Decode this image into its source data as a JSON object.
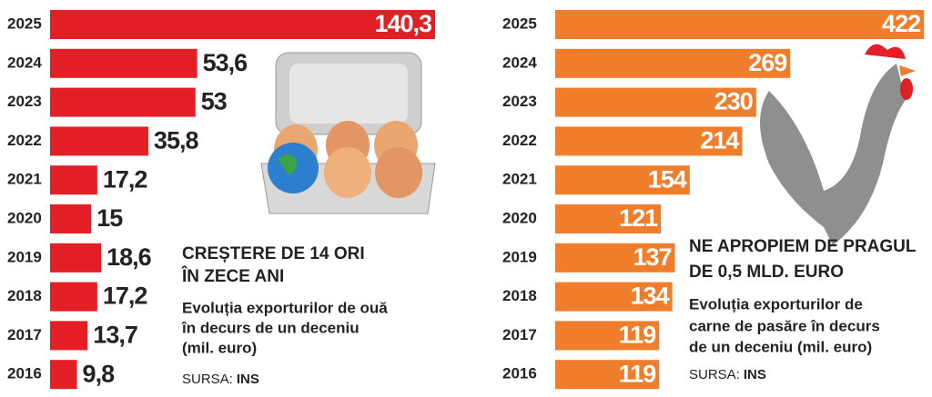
{
  "chart_data": [
    {
      "type": "bar",
      "orientation": "horizontal",
      "categories": [
        "2025",
        "2024",
        "2023",
        "2022",
        "2021",
        "2020",
        "2019",
        "2018",
        "2017",
        "2016"
      ],
      "values": [
        140.3,
        53.6,
        53,
        35.8,
        17.2,
        15,
        18.6,
        17.2,
        13.7,
        9.8
      ],
      "value_labels": [
        "140,3",
        "53,6",
        "53",
        "35,8",
        "17,2",
        "15",
        "18,6",
        "17,2",
        "13,7",
        "9,8"
      ],
      "color": "#e31e24",
      "title": [
        "CREȘTERE DE 14 ORI",
        "ÎN ZECE ANI"
      ],
      "subtitle": [
        "Evoluția exporturilor de ouă",
        "în decurs de un deceniu",
        "(mil. euro)"
      ],
      "source_label": "SURSA:",
      "source": "INS"
    },
    {
      "type": "bar",
      "orientation": "horizontal",
      "categories": [
        "2025",
        "2024",
        "2023",
        "2022",
        "2021",
        "2020",
        "2019",
        "2018",
        "2017",
        "2016"
      ],
      "values": [
        422,
        269,
        230,
        214,
        154,
        121,
        137,
        134,
        119,
        119
      ],
      "color": "#f07d2b",
      "title": [
        "NE APROPIEM DE PRAGUL",
        "DE 0,5 MLD. EURO"
      ],
      "subtitle": [
        "Evoluția exporturilor de",
        "carne de pasăre în decurs",
        "de un deceniu (mil. euro)"
      ],
      "source_label": "SURSA:",
      "source": "INS"
    }
  ]
}
